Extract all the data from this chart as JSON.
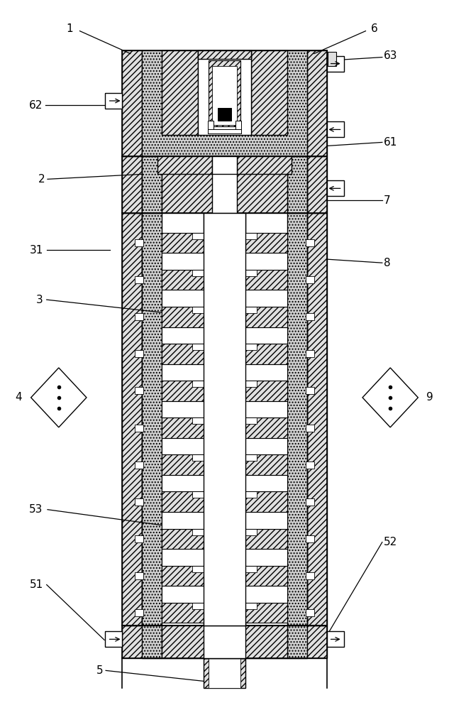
{
  "bg": "#ffffff",
  "lc": "#000000",
  "fig_w": 6.33,
  "fig_h": 10.0,
  "dpi": 100,
  "gray1": "#e0e0e0",
  "gray2": "#d0d0d0",
  "n_segs": 11
}
